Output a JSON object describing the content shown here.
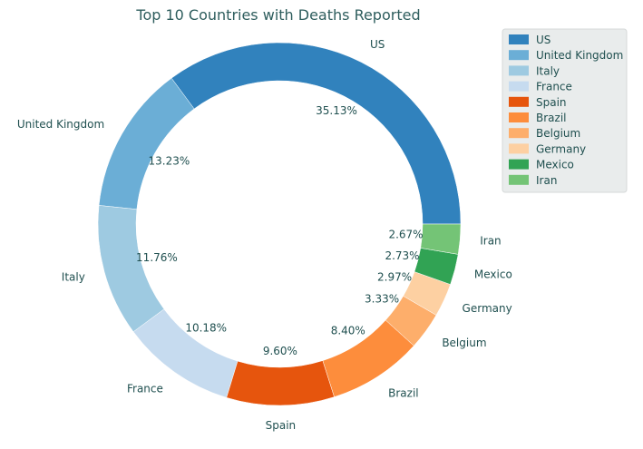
{
  "chart_data": {
    "type": "pie",
    "title": "Top 10 Countries with Deaths Reported",
    "categories": [
      "US",
      "United Kingdom",
      "Italy",
      "France",
      "Spain",
      "Brazil",
      "Belgium",
      "Germany",
      "Mexico",
      "Iran"
    ],
    "values": [
      35.13,
      13.23,
      11.76,
      10.18,
      9.6,
      8.4,
      3.33,
      2.97,
      2.73,
      2.67
    ],
    "value_labels": [
      "35.13%",
      "13.23%",
      "11.76%",
      "10.18%",
      "9.60%",
      "8.40%",
      "3.33%",
      "2.97%",
      "2.73%",
      "2.67%"
    ],
    "colors": [
      "#3182bd",
      "#6baed6",
      "#9ecae1",
      "#c6dbef",
      "#e6550d",
      "#fd8d3c",
      "#fdae6b",
      "#fdd0a2",
      "#31a354",
      "#74c476"
    ],
    "style": "donut",
    "legend": "top-right"
  }
}
